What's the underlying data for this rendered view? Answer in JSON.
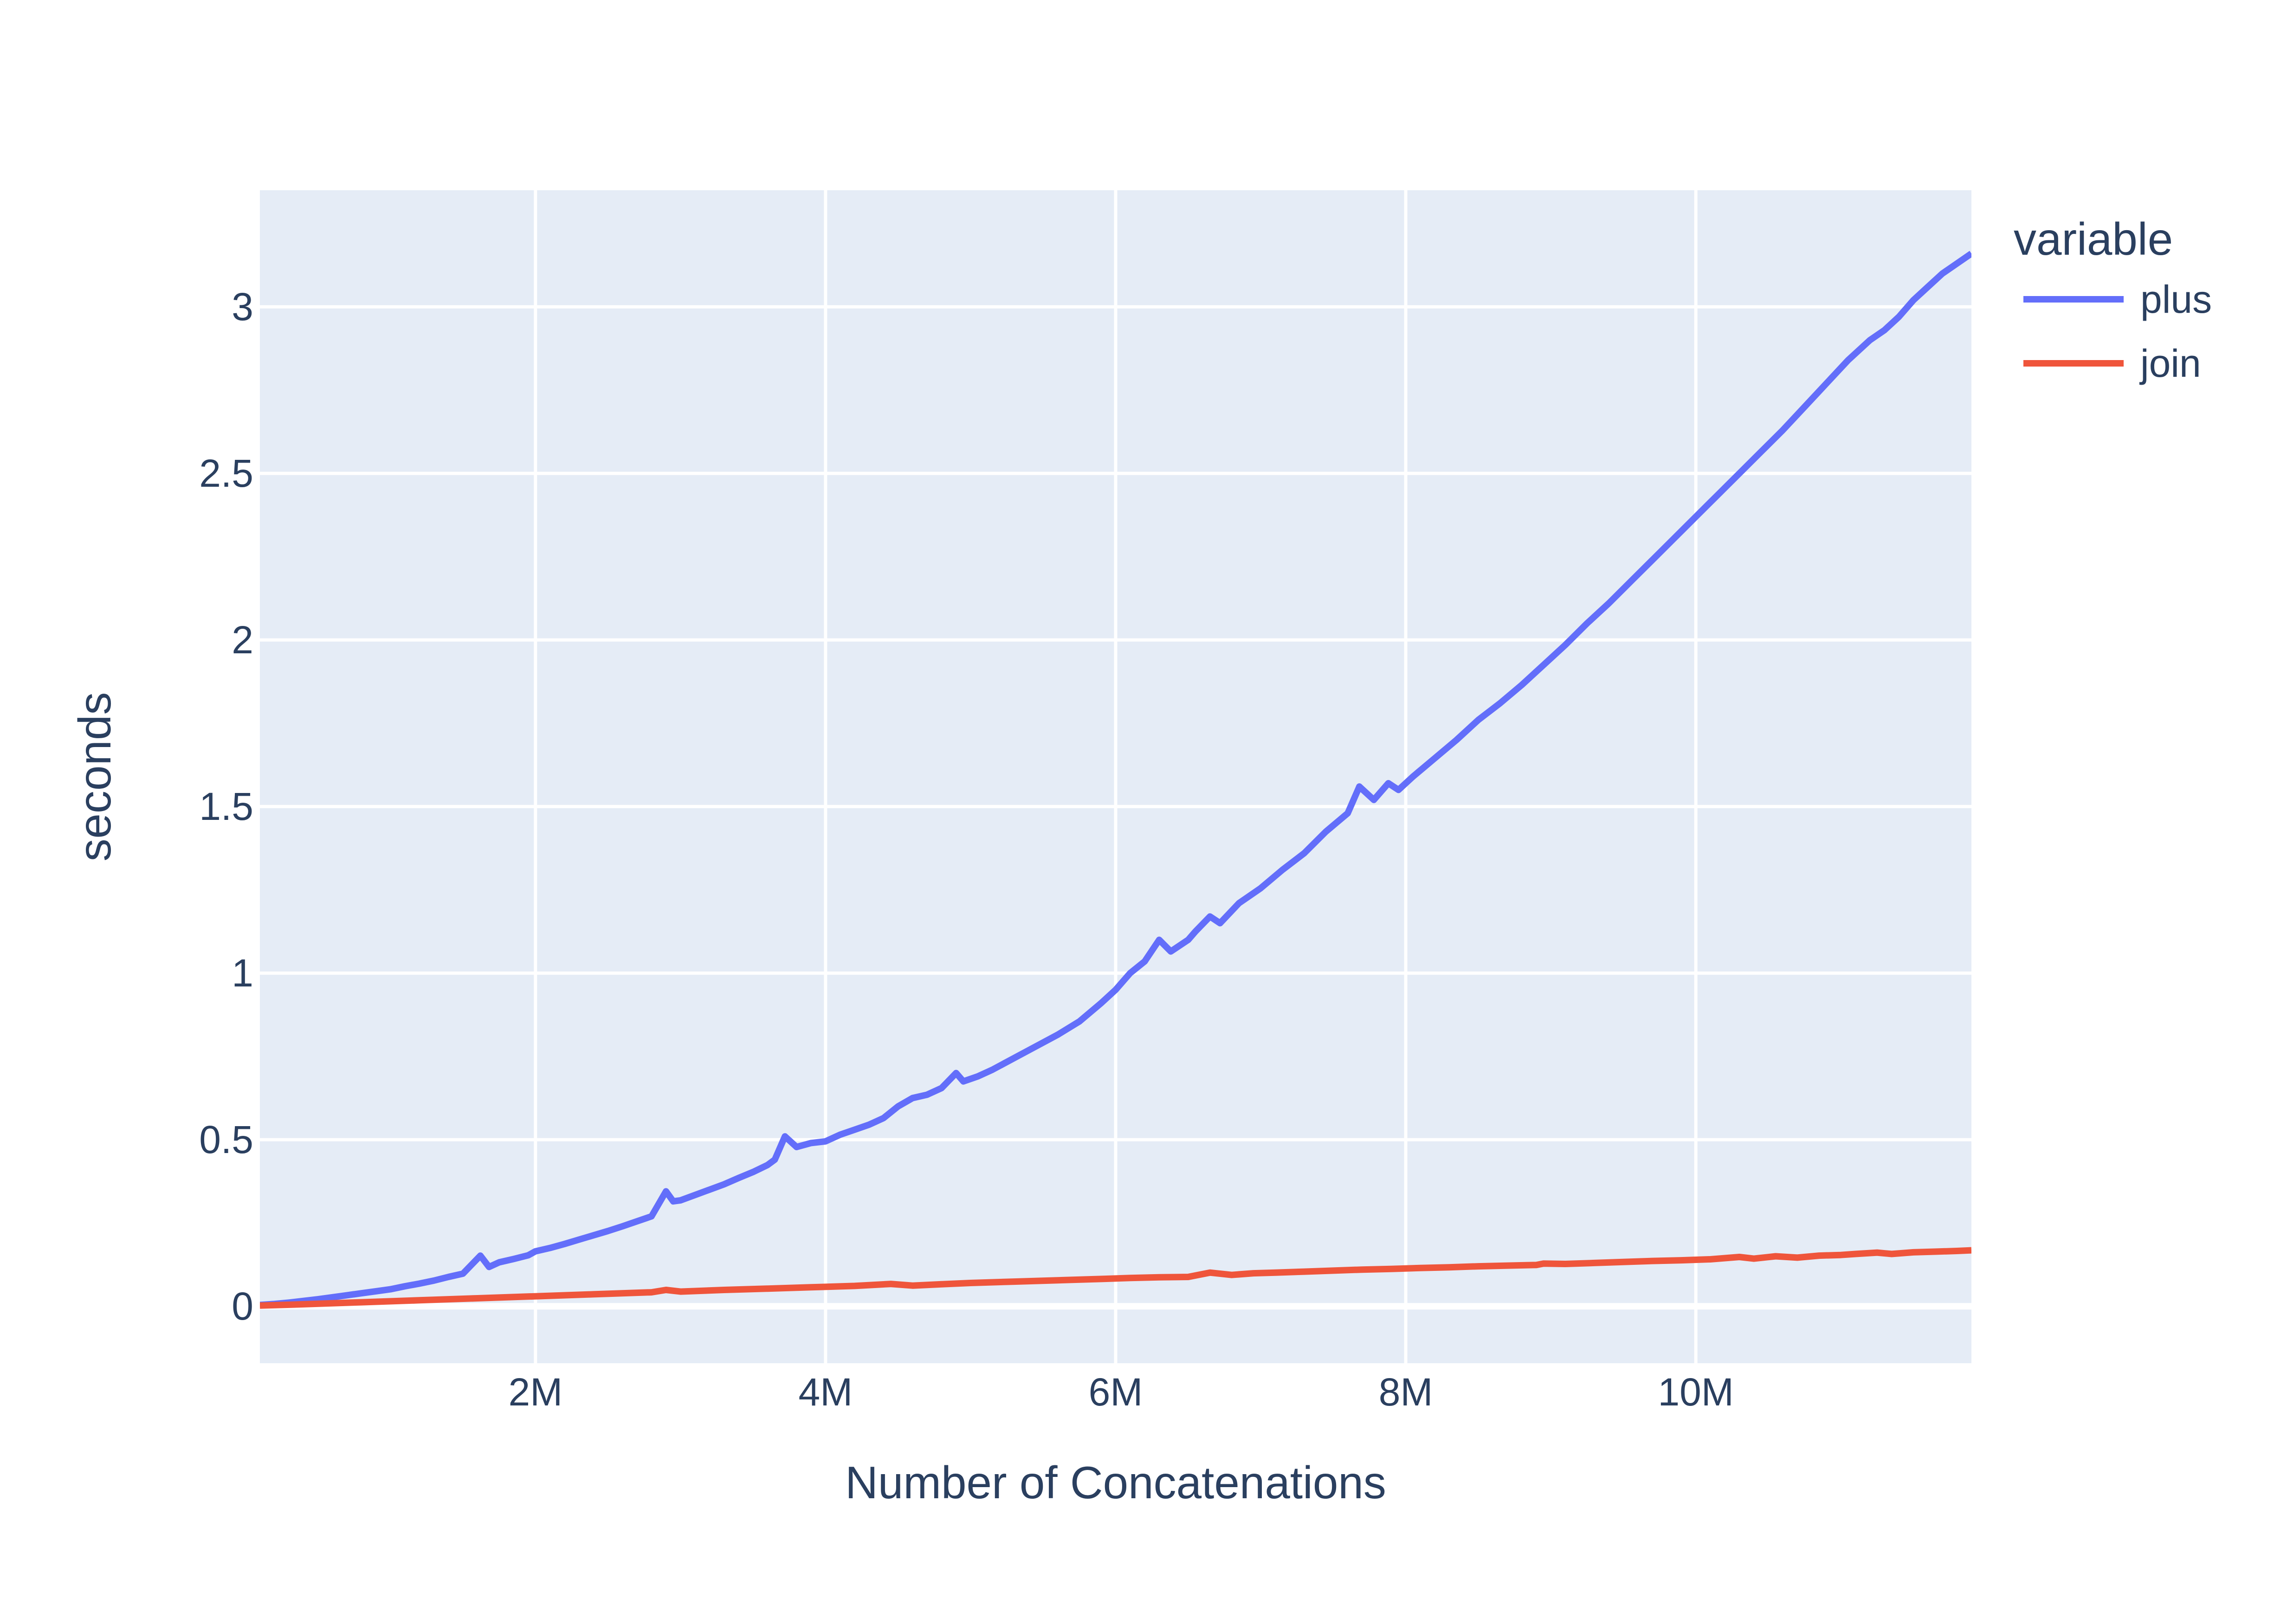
{
  "figure": {
    "paper_background": "#FFFFFF",
    "text_color": "#2A3F5F"
  },
  "chart_data": {
    "type": "line",
    "title": "",
    "xlabel": "Number of Concatenations",
    "ylabel": "seconds",
    "plot_background": "#E5ECF6",
    "grid": true,
    "grid_color": "#FFFFFF",
    "zeroline_color": "#FFFFFF",
    "xlim": [
      100000,
      11900000
    ],
    "ylim": [
      -0.171,
      3.35
    ],
    "x_ticks": [
      {
        "value": 2000000,
        "label": "2M"
      },
      {
        "value": 4000000,
        "label": "4M"
      },
      {
        "value": 6000000,
        "label": "6M"
      },
      {
        "value": 8000000,
        "label": "8M"
      },
      {
        "value": 10000000,
        "label": "10M"
      }
    ],
    "y_ticks": [
      {
        "value": 0,
        "label": "0"
      },
      {
        "value": 0.5,
        "label": "0.5"
      },
      {
        "value": 1,
        "label": "1"
      },
      {
        "value": 1.5,
        "label": "1.5"
      },
      {
        "value": 2,
        "label": "2"
      },
      {
        "value": 2.5,
        "label": "2.5"
      },
      {
        "value": 3,
        "label": "3"
      }
    ],
    "legend": {
      "title": "variable",
      "position": "right-top",
      "entries": [
        {
          "label": "plus",
          "color": "#636EFA"
        },
        {
          "label": "join",
          "color": "#EF553B"
        }
      ]
    },
    "series": [
      {
        "name": "plus",
        "color": "#636EFA",
        "x": [
          100000,
          200000,
          300000,
          400000,
          500000,
          600000,
          700000,
          800000,
          900000,
          1000000,
          1100000,
          1200000,
          1300000,
          1400000,
          1500000,
          1620000,
          1680000,
          1750000,
          1850000,
          1950000,
          2000000,
          2100000,
          2200000,
          2300000,
          2400000,
          2500000,
          2600000,
          2700000,
          2800000,
          2900000,
          2950000,
          3000000,
          3100000,
          3200000,
          3300000,
          3400000,
          3500000,
          3600000,
          3650000,
          3720000,
          3800000,
          3900000,
          4000000,
          4100000,
          4200000,
          4300000,
          4400000,
          4500000,
          4600000,
          4700000,
          4800000,
          4900000,
          4950000,
          5050000,
          5150000,
          5300000,
          5450000,
          5600000,
          5750000,
          5900000,
          6000000,
          6100000,
          6200000,
          6300000,
          6380000,
          6500000,
          6550000,
          6650000,
          6720000,
          6850000,
          7000000,
          7150000,
          7300000,
          7450000,
          7600000,
          7680000,
          7780000,
          7880000,
          7950000,
          8050000,
          8200000,
          8350000,
          8500000,
          8650000,
          8800000,
          8950000,
          9100000,
          9250000,
          9400000,
          9550000,
          9700000,
          9850000,
          10000000,
          10150000,
          10300000,
          10450000,
          10600000,
          10750000,
          10900000,
          11050000,
          11200000,
          11300000,
          11400000,
          11500000,
          11600000,
          11700000,
          11800000,
          11900000
        ],
        "y": [
          0.004,
          0.007,
          0.011,
          0.016,
          0.021,
          0.027,
          0.033,
          0.039,
          0.045,
          0.051,
          0.06,
          0.068,
          0.077,
          0.088,
          0.098,
          0.152,
          0.118,
          0.132,
          0.142,
          0.153,
          0.165,
          0.175,
          0.187,
          0.2,
          0.213,
          0.226,
          0.24,
          0.255,
          0.27,
          0.345,
          0.315,
          0.318,
          0.334,
          0.35,
          0.366,
          0.385,
          0.403,
          0.424,
          0.44,
          0.51,
          0.478,
          0.49,
          0.495,
          0.515,
          0.53,
          0.545,
          0.565,
          0.6,
          0.625,
          0.635,
          0.655,
          0.7,
          0.675,
          0.69,
          0.71,
          0.745,
          0.78,
          0.815,
          0.855,
          0.91,
          0.95,
          1.0,
          1.035,
          1.1,
          1.065,
          1.1,
          1.125,
          1.17,
          1.15,
          1.21,
          1.255,
          1.31,
          1.36,
          1.425,
          1.48,
          1.56,
          1.52,
          1.57,
          1.55,
          1.59,
          1.645,
          1.7,
          1.76,
          1.81,
          1.865,
          1.925,
          1.985,
          2.05,
          2.11,
          2.175,
          2.24,
          2.305,
          2.37,
          2.435,
          2.5,
          2.565,
          2.63,
          2.7,
          2.77,
          2.84,
          2.9,
          2.93,
          2.97,
          3.02,
          3.06,
          3.1,
          3.13,
          3.16
        ]
      },
      {
        "name": "join",
        "color": "#EF553B",
        "x": [
          100000,
          400000,
          800000,
          1200000,
          1600000,
          2000000,
          2400000,
          2800000,
          2900000,
          3000000,
          3300000,
          3600000,
          3900000,
          4200000,
          4450000,
          4600000,
          4800000,
          5000000,
          5300000,
          5600000,
          5900000,
          6100000,
          6300000,
          6500000,
          6650000,
          6800000,
          6950000,
          7100000,
          7300000,
          7500000,
          7700000,
          7900000,
          8100000,
          8300000,
          8500000,
          8700000,
          8900000,
          8950000,
          9100000,
          9300000,
          9500000,
          9700000,
          9900000,
          10100000,
          10300000,
          10400000,
          10550000,
          10700000,
          10850000,
          11000000,
          11100000,
          11250000,
          11350000,
          11500000,
          11650000,
          11800000,
          11900000
        ],
        "y": [
          0.002,
          0.006,
          0.012,
          0.018,
          0.024,
          0.03,
          0.036,
          0.042,
          0.049,
          0.044,
          0.049,
          0.053,
          0.057,
          0.061,
          0.067,
          0.062,
          0.066,
          0.07,
          0.074,
          0.078,
          0.082,
          0.085,
          0.087,
          0.088,
          0.101,
          0.094,
          0.099,
          0.101,
          0.104,
          0.107,
          0.11,
          0.112,
          0.115,
          0.117,
          0.12,
          0.122,
          0.124,
          0.128,
          0.127,
          0.13,
          0.133,
          0.136,
          0.138,
          0.141,
          0.148,
          0.143,
          0.15,
          0.146,
          0.152,
          0.154,
          0.157,
          0.161,
          0.157,
          0.162,
          0.164,
          0.166,
          0.168
        ]
      }
    ]
  }
}
